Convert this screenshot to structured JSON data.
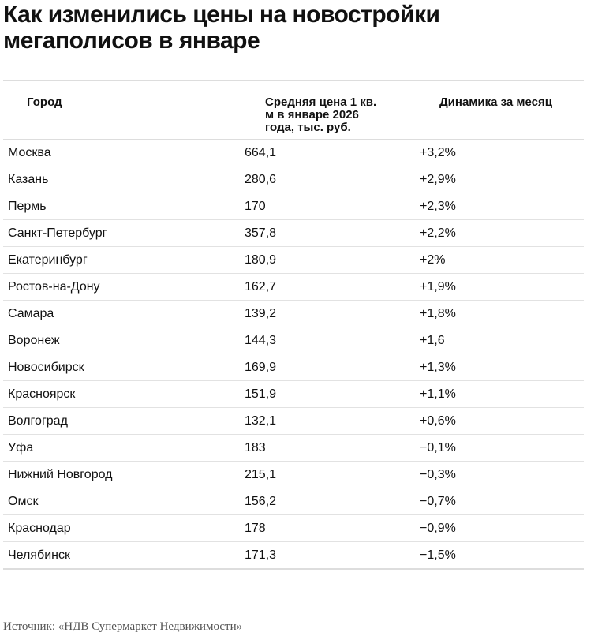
{
  "header": {
    "title": "Как изменились цены на новостройки мегаполисов в январе"
  },
  "table": {
    "columns": [
      "Город",
      "Средняя цена 1 кв. м в январе 2026 года, тыс. руб.",
      "Динамика за месяц"
    ],
    "rows": [
      [
        "Москва",
        "664,1",
        "+3,2%"
      ],
      [
        "Казань",
        "280,6",
        "+2,9%"
      ],
      [
        "Пермь",
        "170",
        "+2,3%"
      ],
      [
        "Санкт-Петербург",
        "357,8",
        "+2,2%"
      ],
      [
        "Екатеринбург",
        "180,9",
        "+2%"
      ],
      [
        "Ростов-на-Дону",
        "162,7",
        "+1,9%"
      ],
      [
        "Самара",
        "139,2",
        "+1,8%"
      ],
      [
        "Воронеж",
        "144,3",
        "+1,6"
      ],
      [
        "Новосибирск",
        "169,9",
        "+1,3%"
      ],
      [
        "Красноярск",
        "151,9",
        "+1,1%"
      ],
      [
        "Волгоград",
        "132,1",
        "+0,6%"
      ],
      [
        "Уфа",
        "183",
        "−0,1%"
      ],
      [
        "Нижний Новгород",
        "215,1",
        "−0,3%"
      ],
      [
        "Омск",
        "156,2",
        "−0,7%"
      ],
      [
        "Краснодар",
        "178",
        "−0,9%"
      ],
      [
        "Челябинск",
        "171,3",
        "−1,5%"
      ]
    ]
  },
  "footer": {
    "source": "Источник: «НДВ Супермаркет Недвижимости»"
  }
}
